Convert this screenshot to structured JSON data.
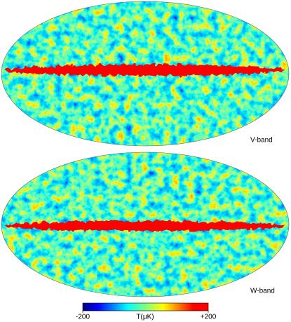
{
  "panels": [
    {
      "label": "V-band"
    },
    {
      "label": "W-band"
    }
  ],
  "colorbar": {
    "label": "T(μK)",
    "lim": [
      -200,
      200
    ],
    "ticks": [
      -200,
      {
        "value": 200,
        "label": "+200"
      }
    ]
  }
}
